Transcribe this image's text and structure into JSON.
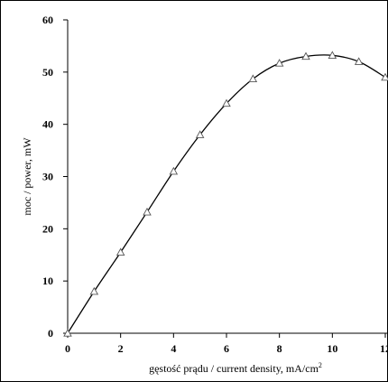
{
  "chart_data": {
    "type": "line",
    "title": "",
    "xlabel": "gęstość prądu / current density, mA/cm",
    "xlabel_sup": "2",
    "ylabel": "moc / power, mW",
    "xlim": [
      0,
      12
    ],
    "ylim": [
      0,
      60
    ],
    "xticks": [
      0,
      2,
      4,
      6,
      8,
      10,
      12
    ],
    "yticks": [
      0,
      10,
      20,
      30,
      40,
      50,
      60
    ],
    "grid": false,
    "series": [
      {
        "marker": "open-triangle",
        "x": [
          0,
          1,
          2,
          3,
          4,
          5,
          6,
          7,
          8,
          9,
          10,
          11,
          12
        ],
        "y": [
          0,
          8,
          15.5,
          23.2,
          31,
          38,
          44,
          48.7,
          51.7,
          53,
          53.2,
          52,
          49
        ]
      }
    ],
    "colors": {
      "line": "#000000",
      "marker_fill": "#ffffff",
      "marker_stroke": "#555555"
    }
  }
}
